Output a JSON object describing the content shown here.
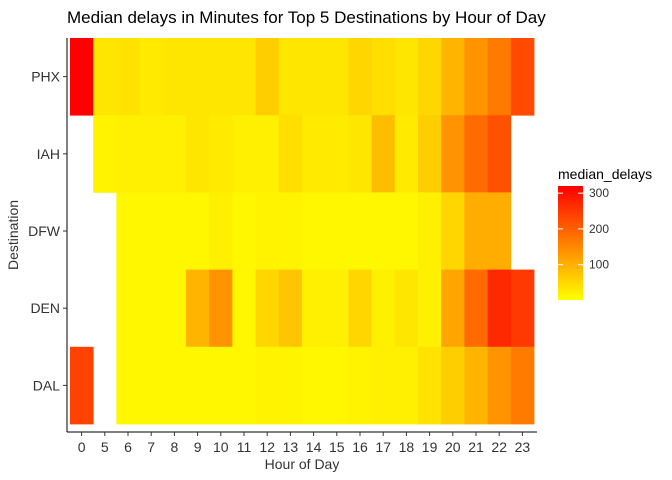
{
  "chart_data": {
    "type": "heatmap",
    "title": "Median delays in Minutes for Top 5 Destinations by Hour of Day",
    "xlabel": "Hour of Day",
    "ylabel": "Destination",
    "x_categories": [
      "0",
      "5",
      "6",
      "7",
      "8",
      "9",
      "10",
      "11",
      "12",
      "13",
      "14",
      "15",
      "16",
      "17",
      "18",
      "19",
      "20",
      "21",
      "22",
      "23"
    ],
    "y_categories": [
      "PHX",
      "IAH",
      "DFW",
      "DEN",
      "DAL"
    ],
    "value_range": [
      10,
      320
    ],
    "color_scale": {
      "low": "#FFFF00",
      "high": "#FF0000"
    },
    "legend": {
      "title": "median_delays",
      "position": "right",
      "ticks": [
        100,
        200,
        300
      ]
    },
    "grid": false,
    "values": {
      "PHX": [
        320,
        40,
        45,
        35,
        40,
        40,
        40,
        40,
        70,
        40,
        40,
        40,
        60,
        50,
        40,
        60,
        100,
        140,
        170,
        230
      ],
      "IAH": [
        null,
        25,
        30,
        30,
        30,
        40,
        35,
        30,
        30,
        50,
        35,
        35,
        40,
        90,
        35,
        70,
        140,
        190,
        220,
        null
      ],
      "DFW": [
        null,
        null,
        20,
        20,
        20,
        20,
        30,
        20,
        25,
        25,
        20,
        20,
        20,
        20,
        20,
        30,
        60,
        110,
        110,
        null
      ],
      "DEN": [
        null,
        null,
        20,
        20,
        20,
        100,
        140,
        20,
        60,
        80,
        30,
        30,
        60,
        30,
        40,
        30,
        120,
        190,
        270,
        250
      ],
      "DAL": [
        240,
        null,
        20,
        20,
        20,
        20,
        20,
        20,
        25,
        25,
        20,
        20,
        25,
        30,
        30,
        45,
        70,
        100,
        140,
        170
      ]
    }
  }
}
